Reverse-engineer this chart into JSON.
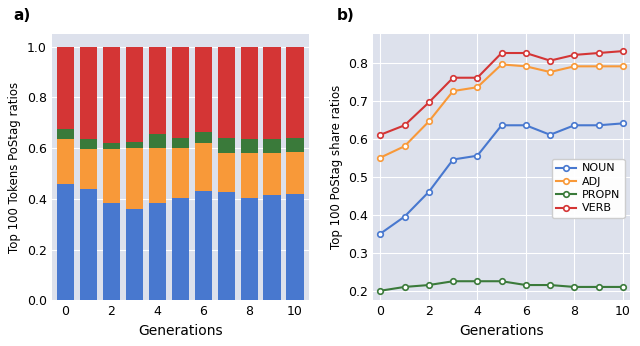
{
  "generations": [
    0,
    1,
    2,
    3,
    4,
    5,
    6,
    7,
    8,
    9,
    10
  ],
  "bar_noun": [
    0.46,
    0.44,
    0.385,
    0.36,
    0.385,
    0.405,
    0.43,
    0.425,
    0.405,
    0.415,
    0.42
  ],
  "bar_adj": [
    0.175,
    0.155,
    0.21,
    0.24,
    0.215,
    0.195,
    0.19,
    0.155,
    0.175,
    0.165,
    0.165
  ],
  "bar_propn": [
    0.04,
    0.04,
    0.025,
    0.025,
    0.055,
    0.04,
    0.045,
    0.06,
    0.055,
    0.055,
    0.055
  ],
  "bar_verb": [
    0.325,
    0.365,
    0.38,
    0.375,
    0.345,
    0.36,
    0.335,
    0.36,
    0.365,
    0.365,
    0.36
  ],
  "noun": [
    0.35,
    0.395,
    0.46,
    0.545,
    0.555,
    0.635,
    0.635,
    0.61,
    0.635,
    0.635,
    0.64
  ],
  "adj": [
    0.55,
    0.58,
    0.645,
    0.725,
    0.735,
    0.795,
    0.79,
    0.775,
    0.79,
    0.79,
    0.79
  ],
  "propn": [
    0.2,
    0.21,
    0.215,
    0.225,
    0.225,
    0.225,
    0.215,
    0.215,
    0.21,
    0.21,
    0.21
  ],
  "verb": [
    0.61,
    0.635,
    0.695,
    0.76,
    0.76,
    0.825,
    0.825,
    0.805,
    0.82,
    0.825,
    0.83
  ],
  "color_noun": "#4878cf",
  "color_adj": "#f89939",
  "color_propn": "#3a7a3a",
  "color_verb": "#d43535",
  "bg_color": "#dde1ec",
  "fig_bg": "#ffffff",
  "ylabel_left": "Top 100 Tokens PoStag ratios",
  "ylabel_right": "Top 100 PoStag share ratios",
  "xlabel": "Generations",
  "label_a": "a)",
  "label_b": "b)"
}
